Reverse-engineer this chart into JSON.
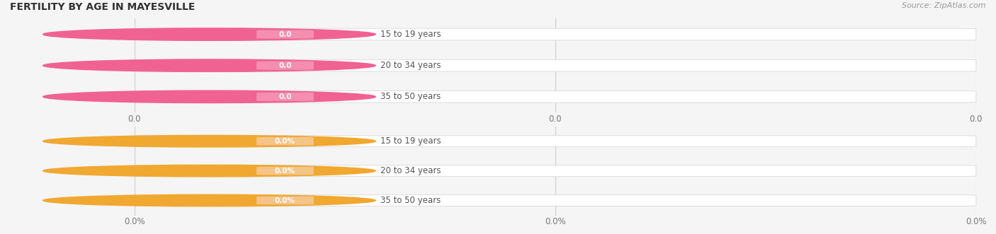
{
  "title": "FERTILITY BY AGE IN MAYESVILLE",
  "source_text": "Source: ZipAtlas.com",
  "background_color": "#f5f5f5",
  "bar_bg_color": "#ffffff",
  "top_section": {
    "categories": [
      "15 to 19 years",
      "20 to 34 years",
      "35 to 50 years"
    ],
    "values": [
      0.0,
      0.0,
      0.0
    ],
    "bar_color": "#f48fb1",
    "dot_color": "#f06292",
    "tick_fmt": "0.0",
    "val_fmt": "0.0"
  },
  "bottom_section": {
    "categories": [
      "15 to 19 years",
      "20 to 34 years",
      "35 to 50 years"
    ],
    "values": [
      0.0,
      0.0,
      0.0
    ],
    "bar_color": "#f5c488",
    "dot_color": "#f0a830",
    "tick_fmt": "0.0%",
    "val_fmt": "0.0%"
  },
  "label_color": "#555555",
  "tick_color": "#777777",
  "title_color": "#333333",
  "source_color": "#999999",
  "grid_color": "#cccccc",
  "bar_border_color": "#dddddd",
  "title_fontsize": 10,
  "label_fontsize": 8.5,
  "tick_fontsize": 8.5,
  "val_fontsize": 7.5
}
